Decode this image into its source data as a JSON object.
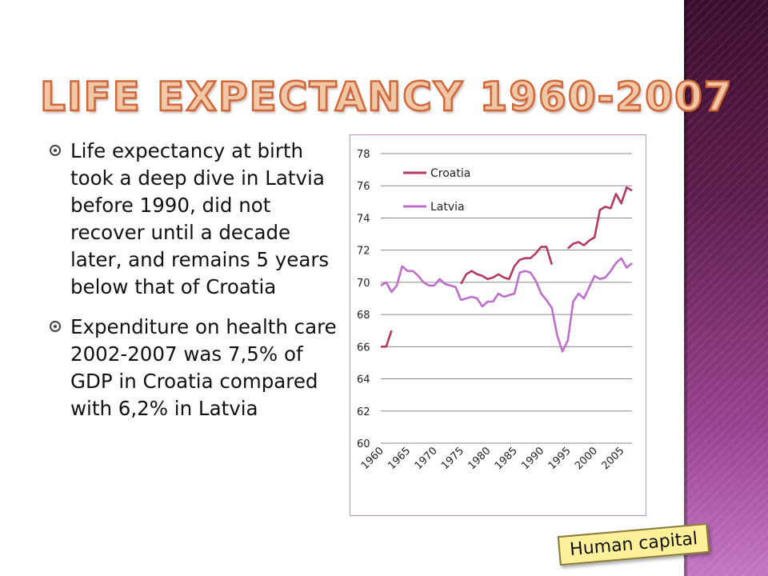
{
  "slide": {
    "title": "LIFE EXPECTANCY 1960-2007",
    "bullets": [
      "Life expectancy at birth took a deep dive in Latvia before 1990, did not recover until a decade later, and remains 5 years below that of Croatia",
      "Expenditure on health care 2002-2007 was 7,5% of GDP in Croatia compared with 6,2% in Latvia"
    ],
    "badge": "Human capital"
  },
  "colors": {
    "croatia": "#b5395e",
    "latvia": "#bd6fcb",
    "title_fill": "#f0c8a8",
    "title_stroke": "#d0683a"
  },
  "chart_data": {
    "type": "line",
    "x": [
      1960,
      1961,
      1962,
      1963,
      1964,
      1965,
      1966,
      1967,
      1968,
      1969,
      1970,
      1971,
      1972,
      1973,
      1974,
      1975,
      1976,
      1977,
      1978,
      1979,
      1980,
      1981,
      1982,
      1983,
      1984,
      1985,
      1986,
      1987,
      1988,
      1989,
      1990,
      1991,
      1992,
      1993,
      1994,
      1995,
      1996,
      1997,
      1998,
      1999,
      2000,
      2001,
      2002,
      2003,
      2004,
      2005,
      2006,
      2007
    ],
    "x_tick_labels": [
      "1960",
      "1965",
      "1970",
      "1975",
      "1980",
      "1985",
      "1990",
      "1995",
      "2000",
      "2005"
    ],
    "ylim": [
      60,
      78
    ],
    "y_ticks": [
      60,
      62,
      64,
      66,
      68,
      70,
      72,
      74,
      76,
      78
    ],
    "grid": true,
    "legend_position": "top-left",
    "series": [
      {
        "name": "Croatia",
        "values": [
          66.0,
          66.0,
          67.0,
          null,
          null,
          null,
          null,
          null,
          null,
          null,
          null,
          null,
          null,
          null,
          null,
          69.9,
          70.5,
          70.7,
          70.5,
          70.4,
          70.2,
          70.3,
          70.5,
          70.3,
          70.2,
          71.0,
          71.4,
          71.5,
          71.5,
          71.8,
          72.2,
          72.2,
          71.1,
          null,
          null,
          72.1,
          72.4,
          72.5,
          72.3,
          72.6,
          72.8,
          74.5,
          74.7,
          74.6,
          75.5,
          74.9,
          75.9,
          75.7
        ]
      },
      {
        "name": "Latvia",
        "values": [
          69.8,
          70.0,
          69.4,
          69.8,
          71.0,
          70.7,
          70.7,
          70.4,
          70.0,
          69.8,
          69.8,
          70.2,
          69.9,
          69.8,
          69.7,
          68.9,
          69.0,
          69.1,
          69.0,
          68.5,
          68.8,
          68.8,
          69.3,
          69.1,
          69.2,
          69.3,
          70.6,
          70.7,
          70.6,
          70.1,
          69.3,
          68.9,
          68.4,
          66.7,
          65.7,
          66.4,
          68.8,
          69.3,
          69.0,
          69.7,
          70.4,
          70.2,
          70.3,
          70.7,
          71.2,
          71.5,
          70.9,
          71.2
        ]
      }
    ]
  }
}
